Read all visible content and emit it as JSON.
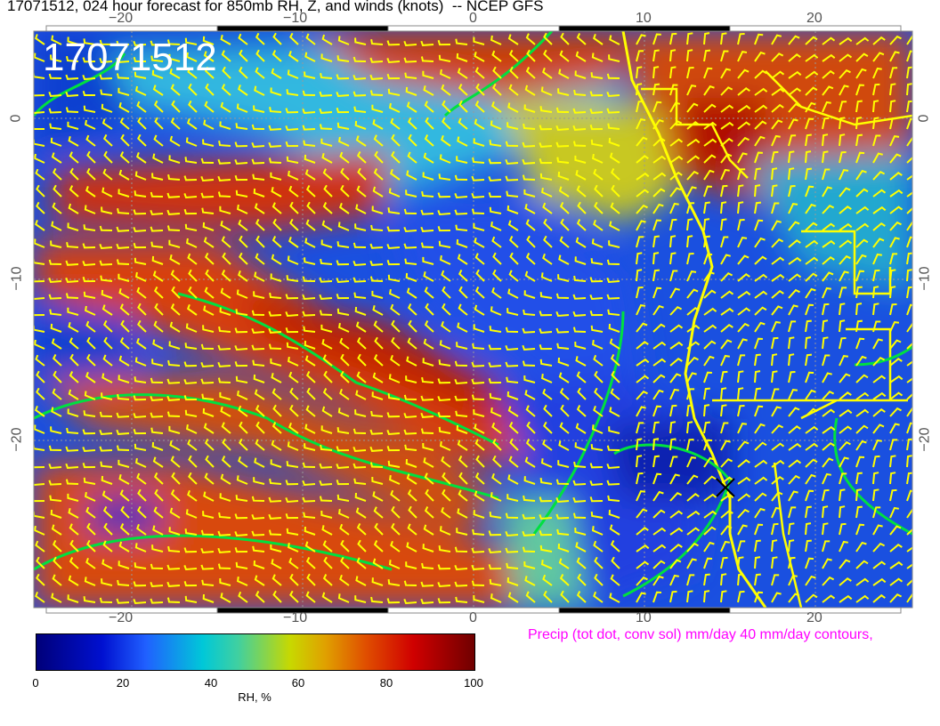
{
  "title": "17071512, 024 hour forecast for 850mb RH, Z, and winds (knots)  -- NCEP GFS",
  "stamp": "17071512",
  "precip_note": "Precip (tot dot, conv sol) mm/day 40 mm/day contours,",
  "map": {
    "lon_ticks": [
      "−20",
      "−10",
      "0",
      "10",
      "20"
    ],
    "lat_ticks": [
      "0",
      "−10",
      "−20"
    ],
    "lon_range": [
      -25.7,
      25.7
    ],
    "lat_range": [
      -30.4,
      5.4
    ],
    "contour_color": "#00e040",
    "coast_color": "#ffff00",
    "barb_color": "#ffff00"
  },
  "colorbar": {
    "ticks": [
      "0",
      "20",
      "40",
      "60",
      "80",
      "100"
    ],
    "label": "RH, %",
    "range": [
      0,
      100
    ]
  }
}
